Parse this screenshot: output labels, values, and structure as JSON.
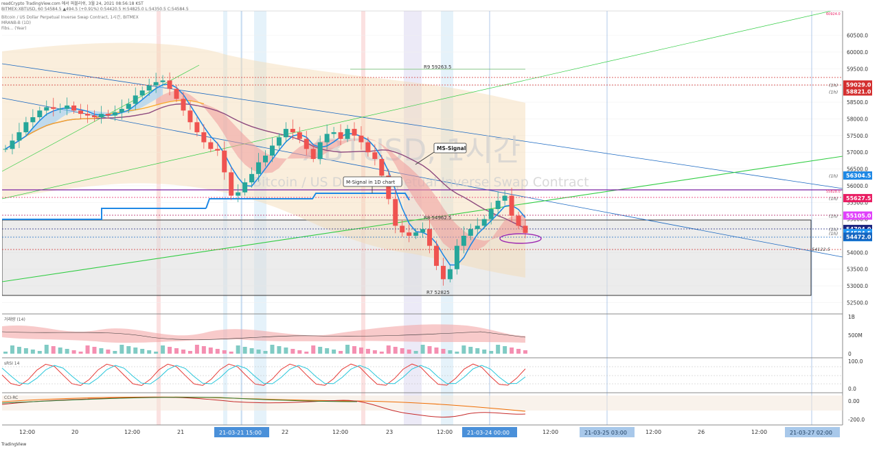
{
  "header": {
    "line1": "readCrypto TradingView.com 에서 퍼블리쉬, 3월 24, 2021 08:56:18 KST",
    "line2": "BITMEX:XBTUSD, 60 54584.5 ▲494.5 (+0.91%) 0:54420.5 H:54825.0 L:54350.5 C:54584.5",
    "legend": [
      "Bitcoin / US Dollar Perpetual Inverse Swap Contract, 1시간, BITMEX",
      "MRANB-B (1D)",
      "Fibs... (Year)"
    ]
  },
  "watermark": {
    "symbol": "XBTUSD, 1시간",
    "name": "Bitcoin / US Dollar Perpetual Inverse Swap Contract"
  },
  "annotations": {
    "r9": "R9 59263.5",
    "r8": "R8 54962.5",
    "r7": "R7 52825",
    "ms_signal": "MS-Signal",
    "m_signal": "M-Signal in 1D chart",
    "top_tag": "60924.0",
    "mid_tag": "55828.0",
    "level_right": "54122.5"
  },
  "price_axis": {
    "ticks": [
      "60500.0",
      "60000.0",
      "59500.0",
      "59000.0",
      "58500.0",
      "58000.0",
      "57500.0",
      "57000.0",
      "56500.0",
      "56000.0",
      "55500.0",
      "55000.0",
      "54500.0",
      "54000.0",
      "53500.0",
      "53000.0",
      "52500.0"
    ],
    "min": 52400,
    "max": 60800
  },
  "price_labels": [
    {
      "text": "59029.0",
      "value": 59029,
      "color": "#d32f2f",
      "tag": "(1h)"
    },
    {
      "text": "58821.0",
      "value": 58821,
      "color": "#d32f2f",
      "tag": "(1h)"
    },
    {
      "text": "56304.5",
      "value": 56304.5,
      "color": "#1e88e5",
      "tag": "(1h)"
    },
    {
      "text": "55627.5",
      "value": 55627.5,
      "color": "#e91e63",
      "tag": "(1h)"
    },
    {
      "text": "55105.0",
      "value": 55105,
      "color": "#e040fb",
      "tag": "(1h)"
    },
    {
      "text": "54704.0",
      "value": 54704,
      "color": "#1a237e",
      "tag": "(1h)"
    },
    {
      "text": "54584.5",
      "value": 54584.5,
      "color": "#2196f3",
      "tag": "(1h)"
    },
    {
      "text": "03:44",
      "value": 54458,
      "color": "#2196f3",
      "tag": ""
    },
    {
      "text": "54472.0",
      "value": 54472,
      "color": "#1565c0",
      "tag": ""
    }
  ],
  "panels": {
    "volume": {
      "name": "거래량 (14)",
      "ticks": [
        "1B",
        "500M",
        "0"
      ]
    },
    "stoch": {
      "name": "sRSI 14",
      "ticks": [
        "100.0",
        "0.0"
      ]
    },
    "cci": {
      "name": "CCI-RC",
      "ticks": [
        "0.00",
        "-200.0"
      ]
    }
  },
  "time_axis": {
    "ticks": [
      "12:00",
      "20",
      "12:00",
      "21",
      "22",
      "12:00",
      "23",
      "12:00",
      "12:00",
      "12:00",
      "26",
      "12:00"
    ],
    "highlights": [
      "21-03-21  15:00",
      "21-03-24  00:00",
      "21-03-25  03:00",
      "21-03-27  02:00"
    ]
  },
  "footer": {
    "brand": "TradingView"
  },
  "chart_data": {
    "type": "candlestick",
    "title": "Bitcoin / US Dollar Perpetual Inverse Swap Contract, 1시간, BITMEX",
    "ylim": [
      52400,
      60800
    ],
    "levels": [
      59263.5,
      59029,
      58821,
      55627.5,
      55105,
      54962.5,
      54704,
      54584.5,
      54472,
      54122.5,
      52825
    ],
    "close_path": [
      57100,
      57350,
      57600,
      57900,
      58050,
      58250,
      58350,
      58300,
      58300,
      58400,
      58250,
      58150,
      58100,
      58050,
      58150,
      58100,
      58200,
      58300,
      58450,
      58700,
      58850,
      59000,
      59100,
      59150,
      58900,
      58600,
      58250,
      57900,
      57600,
      57300,
      57100,
      57050,
      56400,
      55700,
      55800,
      56100,
      56350,
      56700,
      56900,
      57200,
      57450,
      57700,
      57600,
      57400,
      57100,
      56800,
      57300,
      57550,
      57600,
      57400,
      57700,
      57500,
      57300,
      57000,
      56800,
      56300,
      55600,
      54800,
      54600,
      54500,
      54600,
      54700,
      54200,
      53600,
      53200,
      53500,
      54200,
      54500,
      54700,
      54800,
      55000,
      55300,
      55550,
      55700,
      55100,
      54800,
      54585
    ]
  }
}
